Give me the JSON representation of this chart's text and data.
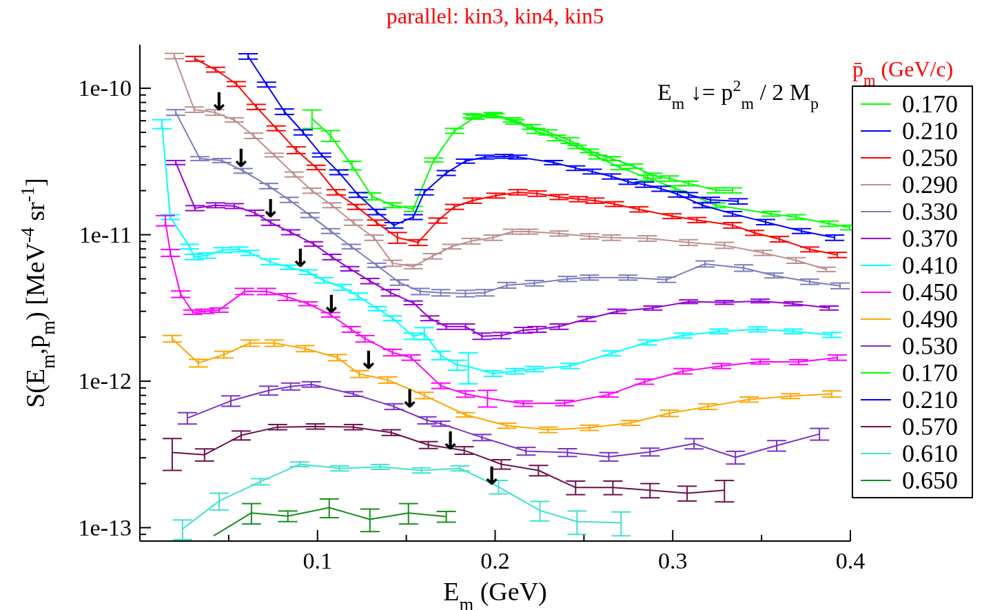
{
  "chart_data": {
    "type": "line",
    "title": "parallel: kin3, kin4, kin5",
    "xlabel": "E$_{m}$ (GeV)",
    "ylabel": "S(E$_{m}$,p$_{m}$) [MeV$^{-4}$ sr$^{-1}$]",
    "legend_title": "p̄$_{m}$ (GeV/c)",
    "legend": "right",
    "grid": false,
    "log": "y",
    "xlim": [
      0,
      0.4
    ],
    "xticks": [
      {
        "value": 0.05,
        "label": null
      },
      0.1,
      {
        "value": 0.15,
        "label": null
      },
      0.2,
      {
        "value": 0.25,
        "label": null
      },
      0.3,
      {
        "value": 0.35,
        "label": null
      },
      0.4
    ],
    "ylim": [
      8.1e-14,
      1.98e-10
    ],
    "yticks": [
      {
        "value": 9e-14,
        "label": null
      },
      {
        "value": 1e-13,
        "label": "1e-13"
      },
      {
        "value": 2e-13,
        "label": null
      },
      {
        "value": 3e-13,
        "label": null
      },
      {
        "value": 4e-13,
        "label": null
      },
      {
        "value": 5e-13,
        "label": null
      },
      {
        "value": 6e-13,
        "label": null
      },
      {
        "value": 7e-13,
        "label": null
      },
      {
        "value": 8e-13,
        "label": null
      },
      {
        "value": 9e-13,
        "label": null
      },
      {
        "value": 1e-12,
        "label": "1e-12"
      },
      {
        "value": 2e-12,
        "label": null
      },
      {
        "value": 3e-12,
        "label": null
      },
      {
        "value": 4e-12,
        "label": null
      },
      {
        "value": 5e-12,
        "label": null
      },
      {
        "value": 6e-12,
        "label": null
      },
      {
        "value": 7e-12,
        "label": null
      },
      {
        "value": 8e-12,
        "label": null
      },
      {
        "value": 9e-12,
        "label": null
      },
      {
        "value": 1e-11,
        "label": "1e-11"
      },
      {
        "value": 2e-11,
        "label": null
      },
      {
        "value": 3e-11,
        "label": null
      },
      {
        "value": 4e-11,
        "label": null
      },
      {
        "value": 5e-11,
        "label": null
      },
      {
        "value": 6e-11,
        "label": null
      },
      {
        "value": 7e-11,
        "label": null
      },
      {
        "value": 8e-11,
        "label": null
      },
      {
        "value": 9e-11,
        "label": null
      },
      {
        "value": 1e-10,
        "label": "1e-10"
      }
    ],
    "annotations": [
      "E$_{m}$ ↓= p$^{2}$$_{m}$ / 2 M$_{p}$",
      {
        "text": "↓",
        "x": 0.0446,
        "y": 6.84e-11
      },
      {
        "text": "↓",
        "x": 0.057,
        "y": 2.82e-11
      },
      {
        "text": "↓",
        "x": 0.0736,
        "y": 1.28e-11
      },
      {
        "text": "↓",
        "x": 0.0903,
        "y": 5.86e-12
      },
      {
        "text": "↓",
        "x": 0.1078,
        "y": 2.84e-12
      },
      {
        "text": "↓",
        "x": 0.1287,
        "y": 1.18e-12
      },
      {
        "text": "↓",
        "x": 0.1519,
        "y": 6.39e-13
      },
      {
        "text": "↓",
        "x": 0.1748,
        "y": 3.33e-13
      },
      {
        "text": "↓",
        "x": 0.1981,
        "y": 1.9e-13
      }
    ],
    "series": [
      {
        "name": "0.170",
        "color": "#00ff00",
        "x": [
          0.0969,
          0.1074,
          0.1194,
          0.1306,
          0.1422,
          0.1539,
          0.1655,
          0.1771,
          0.1888,
          0.2,
          0.2112,
          0.2229,
          0.2345,
          0.2461,
          0.2578,
          0.2702,
          0.2857,
          0.3012,
          0.3244,
          0.3554,
          0.3694,
          0.388,
          0.3996
        ],
        "values": [
          6.21e-11,
          4.74e-11,
          2.97e-11,
          1.83e-11,
          1.59e-11,
          1.5e-11,
          3.24e-11,
          5.12e-11,
          6.35e-11,
          6.49e-11,
          5.89e-11,
          5.12e-11,
          4.58e-11,
          3.98e-11,
          3.39e-11,
          2.88e-11,
          2.45e-11,
          2.08e-11,
          1.59e-11,
          1.39e-11,
          1.32e-11,
          1.19e-11,
          1.12e-11
        ],
        "errors": [
          9e-12,
          4e-12,
          2e-12,
          1e-12,
          6e-13,
          6e-13,
          1e-12,
          2e-12,
          2e-12,
          2e-12,
          2e-12,
          2e-12,
          2e-12,
          1e-12,
          1e-12,
          1e-12,
          1e-12,
          8e-13,
          6e-13,
          5e-13,
          5e-13,
          5e-13,
          4e-13
        ]
      },
      {
        "name": "0.210",
        "color": "#0000ff",
        "x": [
          0.0609,
          0.0713,
          0.0814,
          0.0919,
          0.1023,
          0.112,
          0.1229,
          0.1333,
          0.143,
          0.1539,
          0.1601,
          0.1725,
          0.1833,
          0.1942,
          0.205,
          0.2128,
          0.2329,
          0.2453,
          0.2547,
          0.2655,
          0.2748,
          0.2841,
          0.2934,
          0.3027,
          0.3167,
          0.3337,
          0.3523,
          0.3725,
          0.3911
        ],
        "values": [
          1.65e-10,
          1.06e-10,
          6.92e-11,
          5e-11,
          3.5e-11,
          2.67e-11,
          1.87e-11,
          1.43e-11,
          1.16e-11,
          1.32e-11,
          1.95e-11,
          2.64e-11,
          3.18e-11,
          3.39e-11,
          3.43e-11,
          3.39e-11,
          3.11e-11,
          2.85e-11,
          2.7e-11,
          2.5e-11,
          2.3e-11,
          2.2e-11,
          2.06e-11,
          1.89e-11,
          1.59e-11,
          1.39e-11,
          1.22e-11,
          1.06e-11,
          9.55e-12
        ],
        "errors": [
          7e-12,
          4e-12,
          3e-12,
          2e-12,
          1e-12,
          1e-12,
          7e-13,
          6e-13,
          5e-13,
          5e-13,
          8e-13,
          1e-12,
          1e-12,
          1e-12,
          1e-12,
          1e-12,
          1e-12,
          1e-12,
          1e-12,
          1e-12,
          9e-13,
          9e-13,
          8e-13,
          8e-13,
          6e-13,
          5e-13,
          5e-13,
          4e-13,
          4e-13
        ]
      },
      {
        "name": "0.250",
        "color": "#ff0000",
        "x": [
          0.031,
          0.0426,
          0.0543,
          0.0655,
          0.0767,
          0.088,
          0.0992,
          0.1105,
          0.1221,
          0.1333,
          0.145,
          0.1566,
          0.1678,
          0.1771,
          0.1872,
          0.2004,
          0.2128,
          0.2236,
          0.236,
          0.2469,
          0.2562,
          0.2671,
          0.281,
          0.2996,
          0.3136,
          0.3337,
          0.3461,
          0.3601,
          0.3771,
          0.3926
        ],
        "values": [
          1.59e-10,
          1.34e-10,
          1.07e-10,
          7.46e-11,
          5.33e-11,
          3.78e-11,
          2.88e-11,
          1.95e-11,
          1.55e-11,
          1.21e-11,
          9.55e-12,
          8.85e-12,
          1.25e-11,
          1.55e-11,
          1.71e-11,
          1.85e-11,
          1.95e-11,
          1.91e-11,
          1.81e-11,
          1.75e-11,
          1.71e-11,
          1.62e-11,
          1.49e-11,
          1.34e-11,
          1.26e-11,
          1.16e-11,
          1.03e-11,
          9.33e-12,
          7.94e-12,
          7.28e-12
        ],
        "errors": [
          6e-12,
          5e-12,
          4e-12,
          3e-12,
          2e-12,
          2e-12,
          1e-12,
          8e-13,
          6e-13,
          5e-13,
          8e-13,
          4e-13,
          5e-13,
          6e-13,
          7e-13,
          7e-13,
          8e-13,
          8e-13,
          7e-13,
          7e-13,
          7e-13,
          6e-13,
          6e-13,
          5e-13,
          5e-13,
          5e-13,
          4e-13,
          4e-13,
          3e-13,
          3e-13
        ]
      },
      {
        "name": "0.290",
        "color": "#bc8f8f",
        "x": [
          0.0194,
          0.0306,
          0.0422,
          0.0531,
          0.064,
          0.0756,
          0.0868,
          0.0969,
          0.1081,
          0.1202,
          0.1318,
          0.1422,
          0.1539,
          0.1647,
          0.1756,
          0.1864,
          0.1988,
          0.2097,
          0.219,
          0.236,
          0.2531,
          0.2655,
          0.2857,
          0.3089,
          0.3291,
          0.3508,
          0.3694,
          0.3864
        ],
        "values": [
          1.66e-10,
          7.15e-11,
          6.84e-11,
          6.08e-11,
          4.74e-11,
          3.5e-11,
          2.58e-11,
          2e-11,
          1.59e-11,
          1.21e-11,
          9.55e-12,
          6.39e-12,
          6.06e-12,
          7.13e-12,
          8.3e-12,
          9.04e-12,
          9.55e-12,
          1.05e-11,
          1.05e-11,
          1.02e-11,
          9.75e-12,
          9.55e-12,
          9.44e-12,
          8.85e-12,
          8.47e-12,
          7.52e-12,
          6.68e-12,
          5.8e-12
        ],
        "errors": [
          7e-12,
          3e-12,
          3e-12,
          2e-12,
          2e-12,
          1e-12,
          1e-12,
          8e-13,
          6e-13,
          5e-13,
          4e-13,
          3e-13,
          2e-13,
          3e-13,
          3e-13,
          4e-13,
          4e-13,
          4e-13,
          4e-13,
          4e-13,
          4e-13,
          4e-13,
          4e-13,
          4e-13,
          4e-13,
          3e-13,
          3e-13,
          2e-13
        ]
      },
      {
        "name": "0.330",
        "color": "#7b7bbd",
        "x": [
          0.0202,
          0.0337,
          0.0461,
          0.0581,
          0.0725,
          0.0841,
          0.0957,
          0.1074,
          0.119,
          0.1333,
          0.1461,
          0.1578,
          0.1694,
          0.1833,
          0.1942,
          0.2066,
          0.2221,
          0.2407,
          0.2531,
          0.2748,
          0.2965,
          0.3182,
          0.3399,
          0.357,
          0.3771,
          0.3942
        ],
        "values": [
          6.84e-11,
          3.31e-11,
          3.21e-11,
          2.73e-11,
          2.15e-11,
          1.73e-11,
          1.36e-11,
          1.06e-11,
          8.3e-12,
          6.19e-12,
          4.72e-12,
          4.1e-12,
          4.02e-12,
          3.97e-12,
          4.02e-12,
          4.52e-12,
          4.67e-12,
          4.99e-12,
          5.1e-12,
          5.1e-12,
          4.93e-12,
          6.32e-12,
          5.93e-12,
          5.27e-12,
          4.78e-12,
          4.48e-12
        ],
        "errors": [
          3e-12,
          1e-12,
          1e-12,
          1e-12,
          9e-13,
          7e-13,
          5e-13,
          4e-13,
          3e-13,
          2e-13,
          2e-13,
          2e-13,
          2e-13,
          2e-13,
          2e-13,
          2e-13,
          2e-13,
          2e-13,
          2e-13,
          2e-13,
          2e-13,
          3e-13,
          3e-13,
          2e-13,
          2e-13,
          2e-13
        ]
      },
      {
        "name": "0.370",
        "color": "#9400d3",
        "x": [
          0.0202,
          0.031,
          0.0426,
          0.0531,
          0.0647,
          0.0736,
          0.0849,
          0.0977,
          0.1081,
          0.1182,
          0.1295,
          0.1411,
          0.1539,
          0.1632,
          0.1725,
          0.1833,
          0.1926,
          0.2035,
          0.2159,
          0.2236,
          0.236,
          0.2516,
          0.2686,
          0.2888,
          0.3089,
          0.3291,
          0.3492,
          0.3678,
          0.388
        ],
        "values": [
          3.11e-11,
          1.52e-11,
          1.59e-11,
          1.57e-11,
          1.41e-11,
          1.21e-11,
          1.04e-11,
          8.65e-12,
          7.05e-12,
          5.86e-12,
          4.83e-12,
          4.02e-12,
          3.43e-12,
          2.69e-12,
          2.36e-12,
          2.36e-12,
          2.03e-12,
          2.05e-12,
          2.23e-12,
          2.26e-12,
          2.36e-12,
          2.66e-12,
          3e-12,
          3.16e-12,
          3.49e-12,
          3.45e-12,
          3.53e-12,
          3.38e-12,
          3.16e-12
        ],
        "errors": [
          1e-12,
          6e-13,
          6e-13,
          6e-13,
          6e-13,
          5e-13,
          4e-13,
          3e-13,
          3e-13,
          2e-13,
          2e-13,
          2e-13,
          1e-13,
          1e-13,
          1e-13,
          1e-13,
          1e-13,
          1e-13,
          1e-13,
          1e-13,
          1e-13,
          1e-13,
          1e-13,
          1e-13,
          1e-13,
          1e-13,
          1e-13,
          1e-13,
          1e-13
        ]
      },
      {
        "name": "0.410",
        "color": "#00ffff",
        "x": [
          0.0124,
          0.0171,
          0.0279,
          0.0306,
          0.0376,
          0.0465,
          0.0558,
          0.062,
          0.0733,
          0.0841,
          0.0946,
          0.1035,
          0.114,
          0.1229,
          0.1337,
          0.1422,
          0.1539,
          0.1601,
          0.1694,
          0.1787,
          0.1849,
          0.1988,
          0.2112,
          0.2221,
          0.2422,
          0.2655,
          0.2857,
          0.3058,
          0.326,
          0.3477,
          0.3678,
          0.3895
        ],
        "values": [
          5.7e-11,
          1.32e-11,
          8.3e-12,
          7.05e-12,
          7.21e-12,
          7.86e-12,
          7.94e-12,
          7.52e-12,
          6.53e-12,
          6e-12,
          5.56e-12,
          4.88e-12,
          4.38e-12,
          3.8e-12,
          3.13e-12,
          2.69e-12,
          2.03e-12,
          2.12e-12,
          1.5e-12,
          1.29e-12,
          1.26e-12,
          1.13e-12,
          1.17e-12,
          1.21e-12,
          1.27e-12,
          1.55e-12,
          1.84e-12,
          2.05e-12,
          2.19e-12,
          2.26e-12,
          2.19e-12,
          2.07e-12
        ],
        "errors": [
          4e-12,
          5e-13,
          3e-13,
          3e-13,
          3e-13,
          3e-13,
          3e-13,
          3e-13,
          3e-13,
          2e-13,
          2e-13,
          2e-13,
          2e-13,
          2e-13,
          1e-13,
          1e-13,
          1e-13,
          2e-13,
          1e-13,
          1e-13,
          3e-13,
          5e-14,
          5e-14,
          5e-14,
          5e-14,
          6e-14,
          7e-14,
          8e-14,
          8e-14,
          9e-14,
          8e-14,
          8e-14
        ]
      },
      {
        "name": "0.450",
        "color": "#ff00ff",
        "x": [
          0.0143,
          0.0171,
          0.0229,
          0.0298,
          0.0364,
          0.0446,
          0.0589,
          0.0713,
          0.0829,
          0.0946,
          0.1074,
          0.119,
          0.1267,
          0.1422,
          0.1527,
          0.1694,
          0.1833,
          0.1957,
          0.2159,
          0.2391,
          0.264,
          0.2841,
          0.3058,
          0.3275,
          0.3492,
          0.3709,
          0.3926
        ],
        "values": [
          1.25e-11,
          7.52e-12,
          3.93e-12,
          2.96e-12,
          3e-12,
          3.06e-12,
          4.1e-12,
          4.1e-12,
          3.76e-12,
          3.38e-12,
          2.84e-12,
          2.26e-12,
          1.95e-12,
          1.57e-12,
          1.45e-12,
          9.31e-13,
          8.18e-13,
          7.66e-13,
          7.03e-13,
          7.1e-13,
          8.09e-13,
          9.93e-13,
          1.17e-12,
          1.27e-12,
          1.36e-12,
          1.35e-12,
          1.45e-12
        ],
        "errors": [
          1e-12,
          4e-13,
          2e-13,
          1e-13,
          1e-13,
          1e-13,
          2e-13,
          2e-13,
          2e-13,
          1e-13,
          1e-13,
          1e-13,
          1e-13,
          8e-14,
          6e-14,
          4e-14,
          4e-14,
          1e-13,
          3e-14,
          3e-14,
          3e-14,
          4e-14,
          5e-14,
          5e-14,
          5e-14,
          5e-14,
          6e-14
        ]
      },
      {
        "name": "0.490",
        "color": "#ffa500",
        "x": [
          0.0182,
          0.0329,
          0.0473,
          0.062,
          0.0756,
          0.093,
          0.1112,
          0.1236,
          0.1395,
          0.1601,
          0.1833,
          0.2066,
          0.2298,
          0.2531,
          0.2764,
          0.2981,
          0.3198,
          0.343,
          0.3663,
          0.3895
        ],
        "values": [
          1.95e-12,
          1.33e-12,
          1.52e-12,
          1.82e-12,
          1.82e-12,
          1.67e-12,
          1.45e-12,
          1.12e-12,
          1.02e-12,
          8e-13,
          5.9e-13,
          4.97e-13,
          4.66e-13,
          4.81e-13,
          5.19e-13,
          6.04e-13,
          6.71e-13,
          7.5e-13,
          7.91e-13,
          8.18e-13
        ],
        "errors": [
          1e-13,
          8e-14,
          8e-14,
          9e-14,
          9e-14,
          8e-14,
          7e-14,
          6e-14,
          5e-14,
          4e-14,
          2e-14,
          2e-14,
          2e-14,
          2e-14,
          2e-14,
          3e-14,
          3e-14,
          3e-14,
          3e-14,
          4e-14
        ]
      },
      {
        "name": "0.530",
        "color": "#7b2fc8",
        "x": [
          0.0267,
          0.0512,
          0.0725,
          0.0849,
          0.0965,
          0.1202,
          0.143,
          0.1616,
          0.1694,
          0.1926,
          0.2174,
          0.2407,
          0.264,
          0.2872,
          0.312,
          0.3353,
          0.3585,
          0.3826
        ],
        "values": [
          5.6e-13,
          7.34e-13,
          8.64e-13,
          9.21e-13,
          9.51e-13,
          8.18e-13,
          6.71e-13,
          5.41e-13,
          5.13e-13,
          4.13e-13,
          3.33e-13,
          3.26e-13,
          3.05e-13,
          3.29e-13,
          3.75e-13,
          3.02e-13,
          3.63e-13,
          4.36e-13
        ],
        "errors": [
          5e-14,
          6e-14,
          6e-14,
          5e-14,
          4e-14,
          3e-14,
          3e-14,
          3e-14,
          2e-14,
          2e-14,
          2e-14,
          2e-14,
          2e-14,
          2e-14,
          3e-14,
          3e-14,
          3e-14,
          4e-14
        ]
      },
      {
        "name": "0.170",
        "color": "#00ff00",
        "x": [
          0.1872,
          0.1988,
          0.2097,
          0.2205,
          0.2298,
          0.2422,
          0.2531,
          0.2655,
          0.2779,
          0.2888,
          0.2981,
          0.3089,
          0.3244,
          0.3337
        ],
        "values": [
          6.49e-11,
          6.63e-11,
          6.08e-11,
          5.45e-11,
          5e-11,
          4.4e-11,
          3.74e-11,
          3.31e-11,
          2.94e-11,
          2.53e-11,
          2.42e-11,
          2.24e-11,
          2.01e-11,
          2.01e-11
        ],
        "errors": [
          2e-12,
          2e-12,
          2e-12,
          2e-12,
          2e-12,
          2e-12,
          1e-12,
          1e-12,
          1e-12,
          1e-12,
          1e-12,
          8e-13,
          8e-13,
          8e-13
        ]
      },
      {
        "name": "0.210",
        "color": "#0000ff",
        "x": [
          0.3089,
          0.3213,
          0.3368
        ],
        "values": [
          1.87e-11,
          1.73e-11,
          1.69e-11
        ],
        "errors": [
          7e-13,
          7e-13,
          7e-13
        ]
      },
      {
        "name": "0.570",
        "color": "#6b0f4e",
        "x": [
          0.0182,
          0.0364,
          0.057,
          0.0775,
          0.0988,
          0.1202,
          0.1415,
          0.1624,
          0.1826,
          0.2035,
          0.2244,
          0.2453,
          0.2663,
          0.2872,
          0.3081,
          0.3291
        ],
        "values": [
          3.26e-13,
          3.15e-13,
          4.27e-13,
          4.86e-13,
          4.91e-13,
          4.86e-13,
          4.46e-13,
          3.67e-13,
          3.37e-13,
          2.71e-13,
          2.46e-13,
          1.88e-13,
          1.88e-13,
          1.8e-13,
          1.72e-13,
          1.8e-13
        ],
        "errors": [
          8e-14,
          3e-14,
          3e-14,
          2e-14,
          2e-14,
          2e-14,
          2e-14,
          2e-14,
          2e-14,
          2e-14,
          2e-14,
          2e-14,
          2e-14,
          2e-14,
          2e-14,
          3e-14
        ]
      },
      {
        "name": "0.610",
        "color": "#40e0d0",
        "x": [
          0.024,
          0.0446,
          0.0678,
          0.0899,
          0.1124,
          0.1353,
          0.1585,
          0.1802,
          0.2019,
          0.2252,
          0.2461,
          0.2709
        ],
        "values": [
          9.79e-14,
          1.52e-13,
          2.06e-13,
          2.71e-13,
          2.54e-13,
          2.6e-13,
          2.46e-13,
          2.54e-13,
          1.9e-13,
          1.31e-13,
          1.1e-13,
          1.08e-13
        ],
        "errors": [
          1.5e-14,
          2e-14,
          1e-14,
          1e-14,
          1e-14,
          1e-14,
          1e-14,
          1e-14,
          2e-14,
          2e-14,
          2e-14,
          2e-14
        ]
      },
      {
        "name": "0.650",
        "color": "#12901a",
        "x": [
          0.0415,
          0.0628,
          0.0833,
          0.1066,
          0.1295,
          0.1512,
          0.1725
        ],
        "values": [
          8.79e-14,
          1.26e-13,
          1.2e-13,
          1.37e-13,
          1.14e-13,
          1.26e-13,
          1.19e-13
        ],
        "errors": [
          null,
          2e-14,
          1e-14,
          2e-14,
          2e-14,
          2e-14,
          1e-14
        ]
      }
    ]
  }
}
